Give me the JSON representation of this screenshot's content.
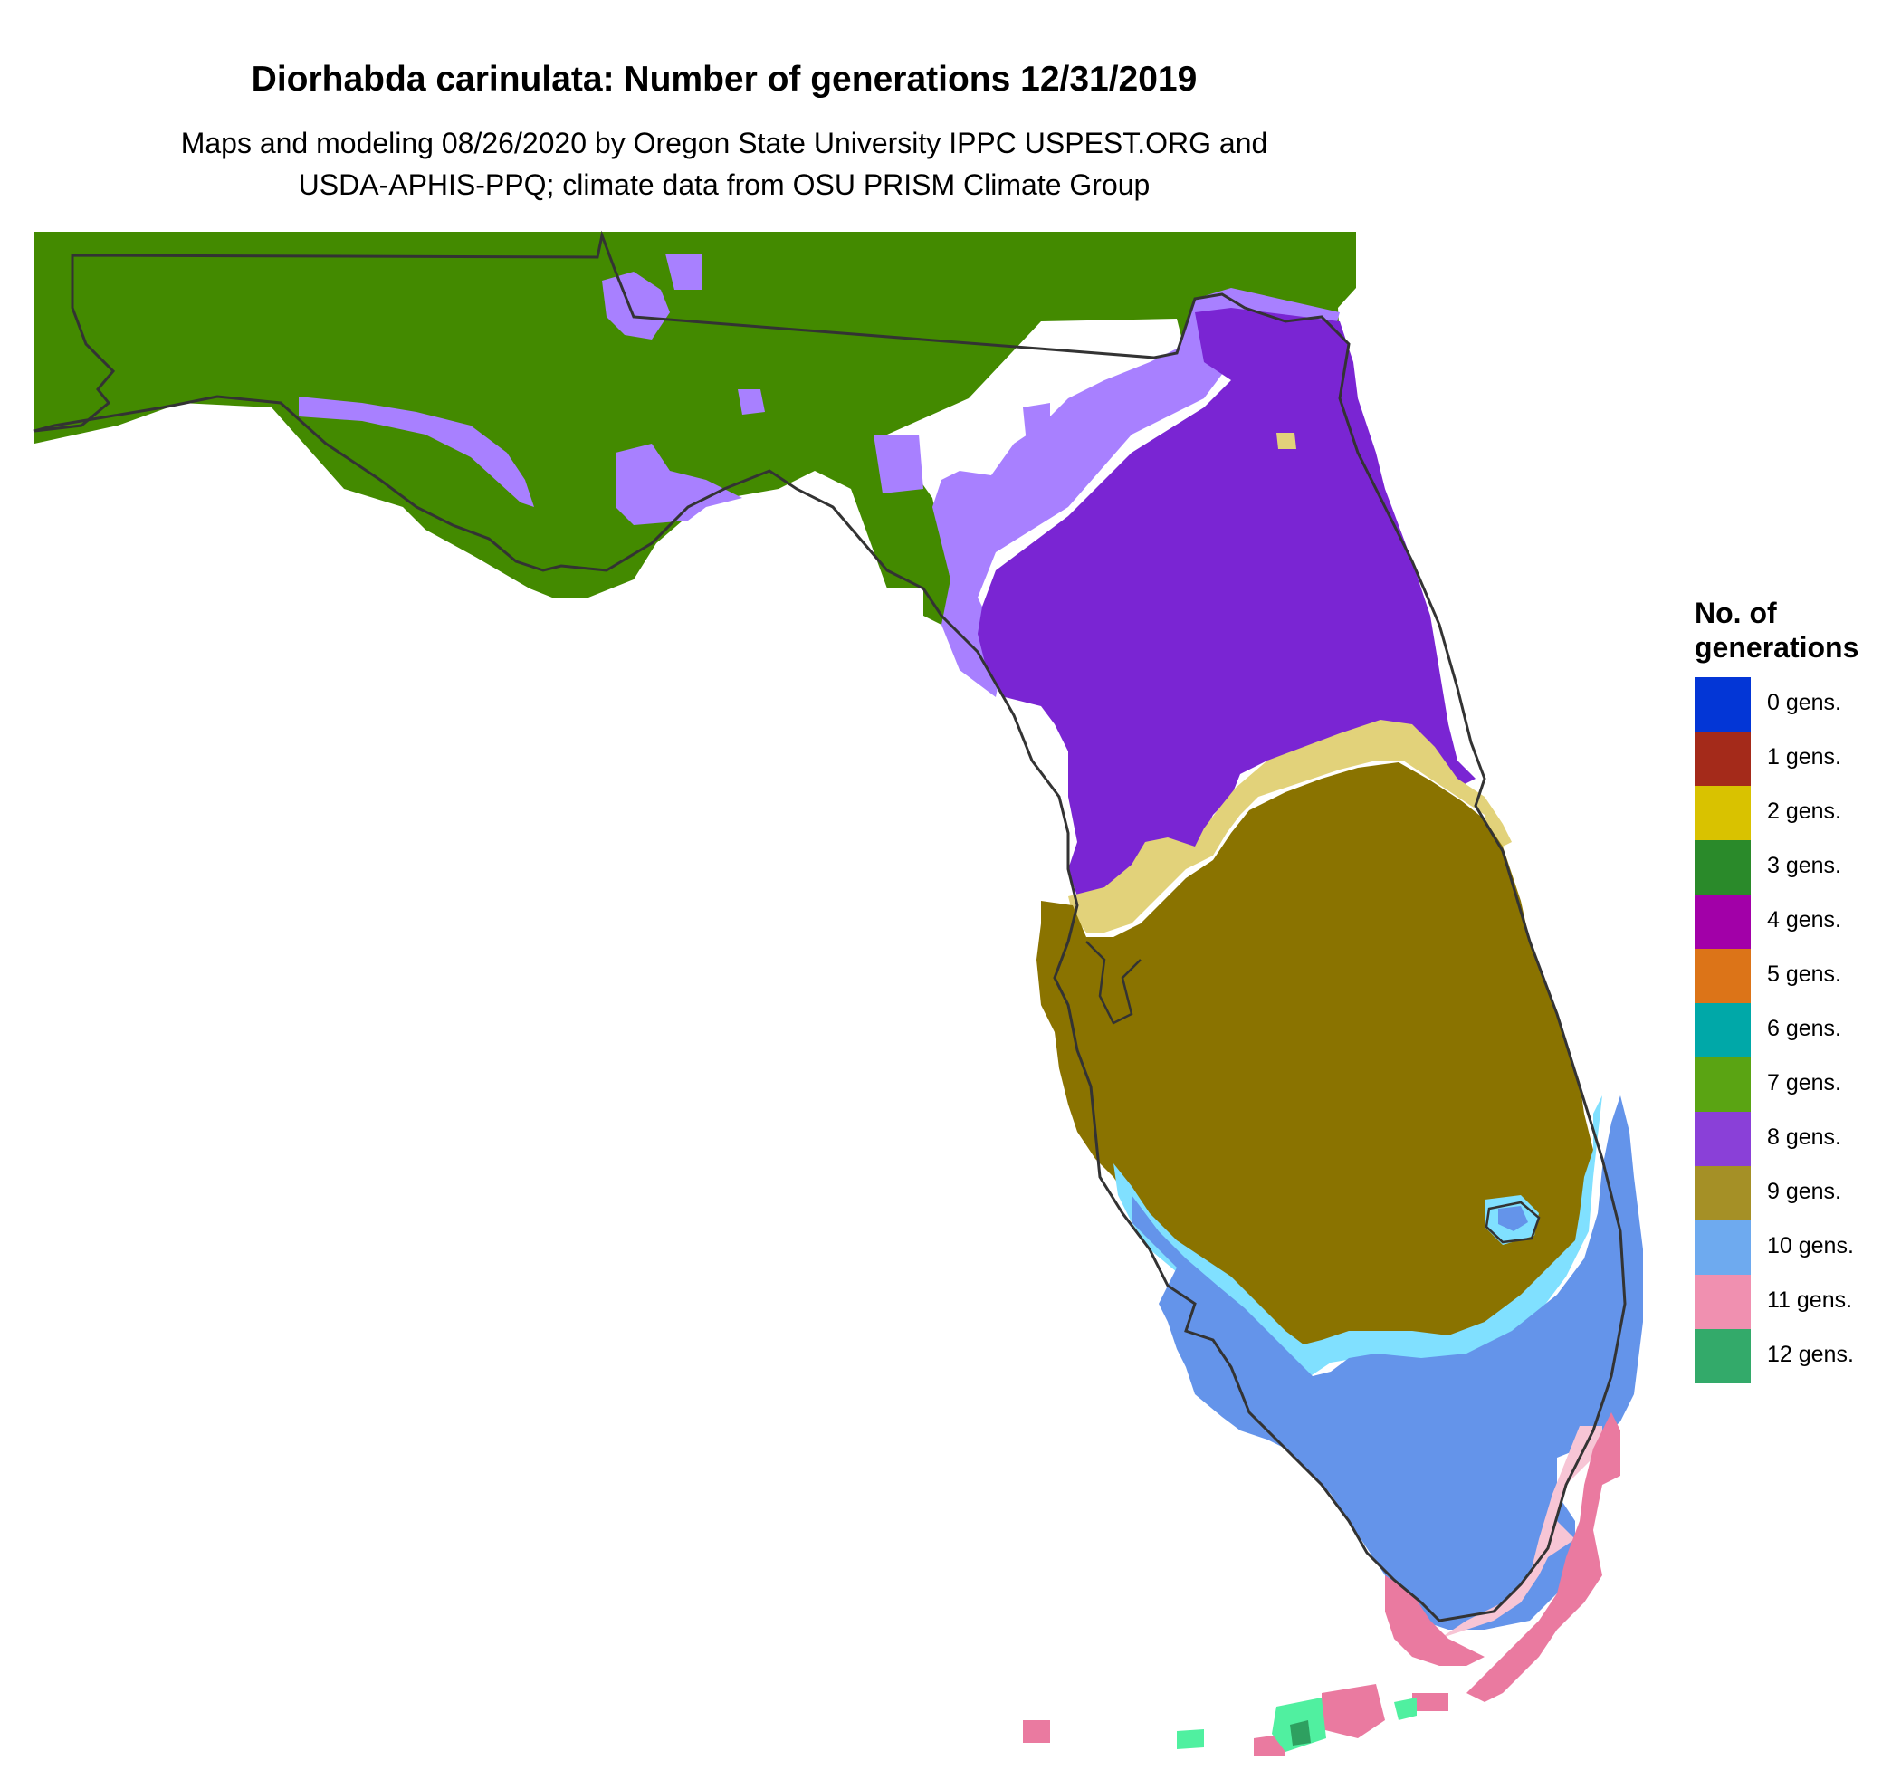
{
  "title": "Diorhabda carinulata: Number of generations 12/31/2019",
  "subtitle_line1": "Maps and modeling 08/26/2020 by Oregon State University IPPC USPEST.ORG and",
  "subtitle_line2": "USDA-APHIS-PPQ; climate data from OSU PRISM Climate Group",
  "legend": {
    "title_line1": "No. of",
    "title_line2": "generations",
    "items": [
      {
        "label": "0 gens.",
        "color": "#0336d6"
      },
      {
        "label": "1 gens.",
        "color": "#a42a1a"
      },
      {
        "label": "2 gens.",
        "color": "#d9c200"
      },
      {
        "label": "3 gens.",
        "color": "#2a8a2a"
      },
      {
        "label": "4 gens.",
        "color": "#a200a8"
      },
      {
        "label": "5 gens.",
        "color": "#dc7418"
      },
      {
        "label": "6 gens.",
        "color": "#00a8a8"
      },
      {
        "label": "7 gens.",
        "color": "#5aa413"
      },
      {
        "label": "8 gens.",
        "color": "#8a40d8"
      },
      {
        "label": "9 gens.",
        "color": "#a59026"
      },
      {
        "label": "10 gens.",
        "color": "#6eaaef"
      },
      {
        "label": "11 gens.",
        "color": "#f090b0"
      },
      {
        "label": "12 gens.",
        "color": "#33aa6a"
      }
    ]
  },
  "map_colors": {
    "panhandle_green": "#438a00",
    "light_purple": "#a880ff",
    "purple": "#7a25d3",
    "pale_yellow": "#e2d27a",
    "olive": "#8a7300",
    "light_cyan": "#80e0ff",
    "blue": "#6494ea",
    "pink": "#ea7aa0",
    "light_pink": "#f7c5d5",
    "mint": "#50f0a0",
    "green_patch": "#2ea060",
    "outline": "#333333"
  }
}
